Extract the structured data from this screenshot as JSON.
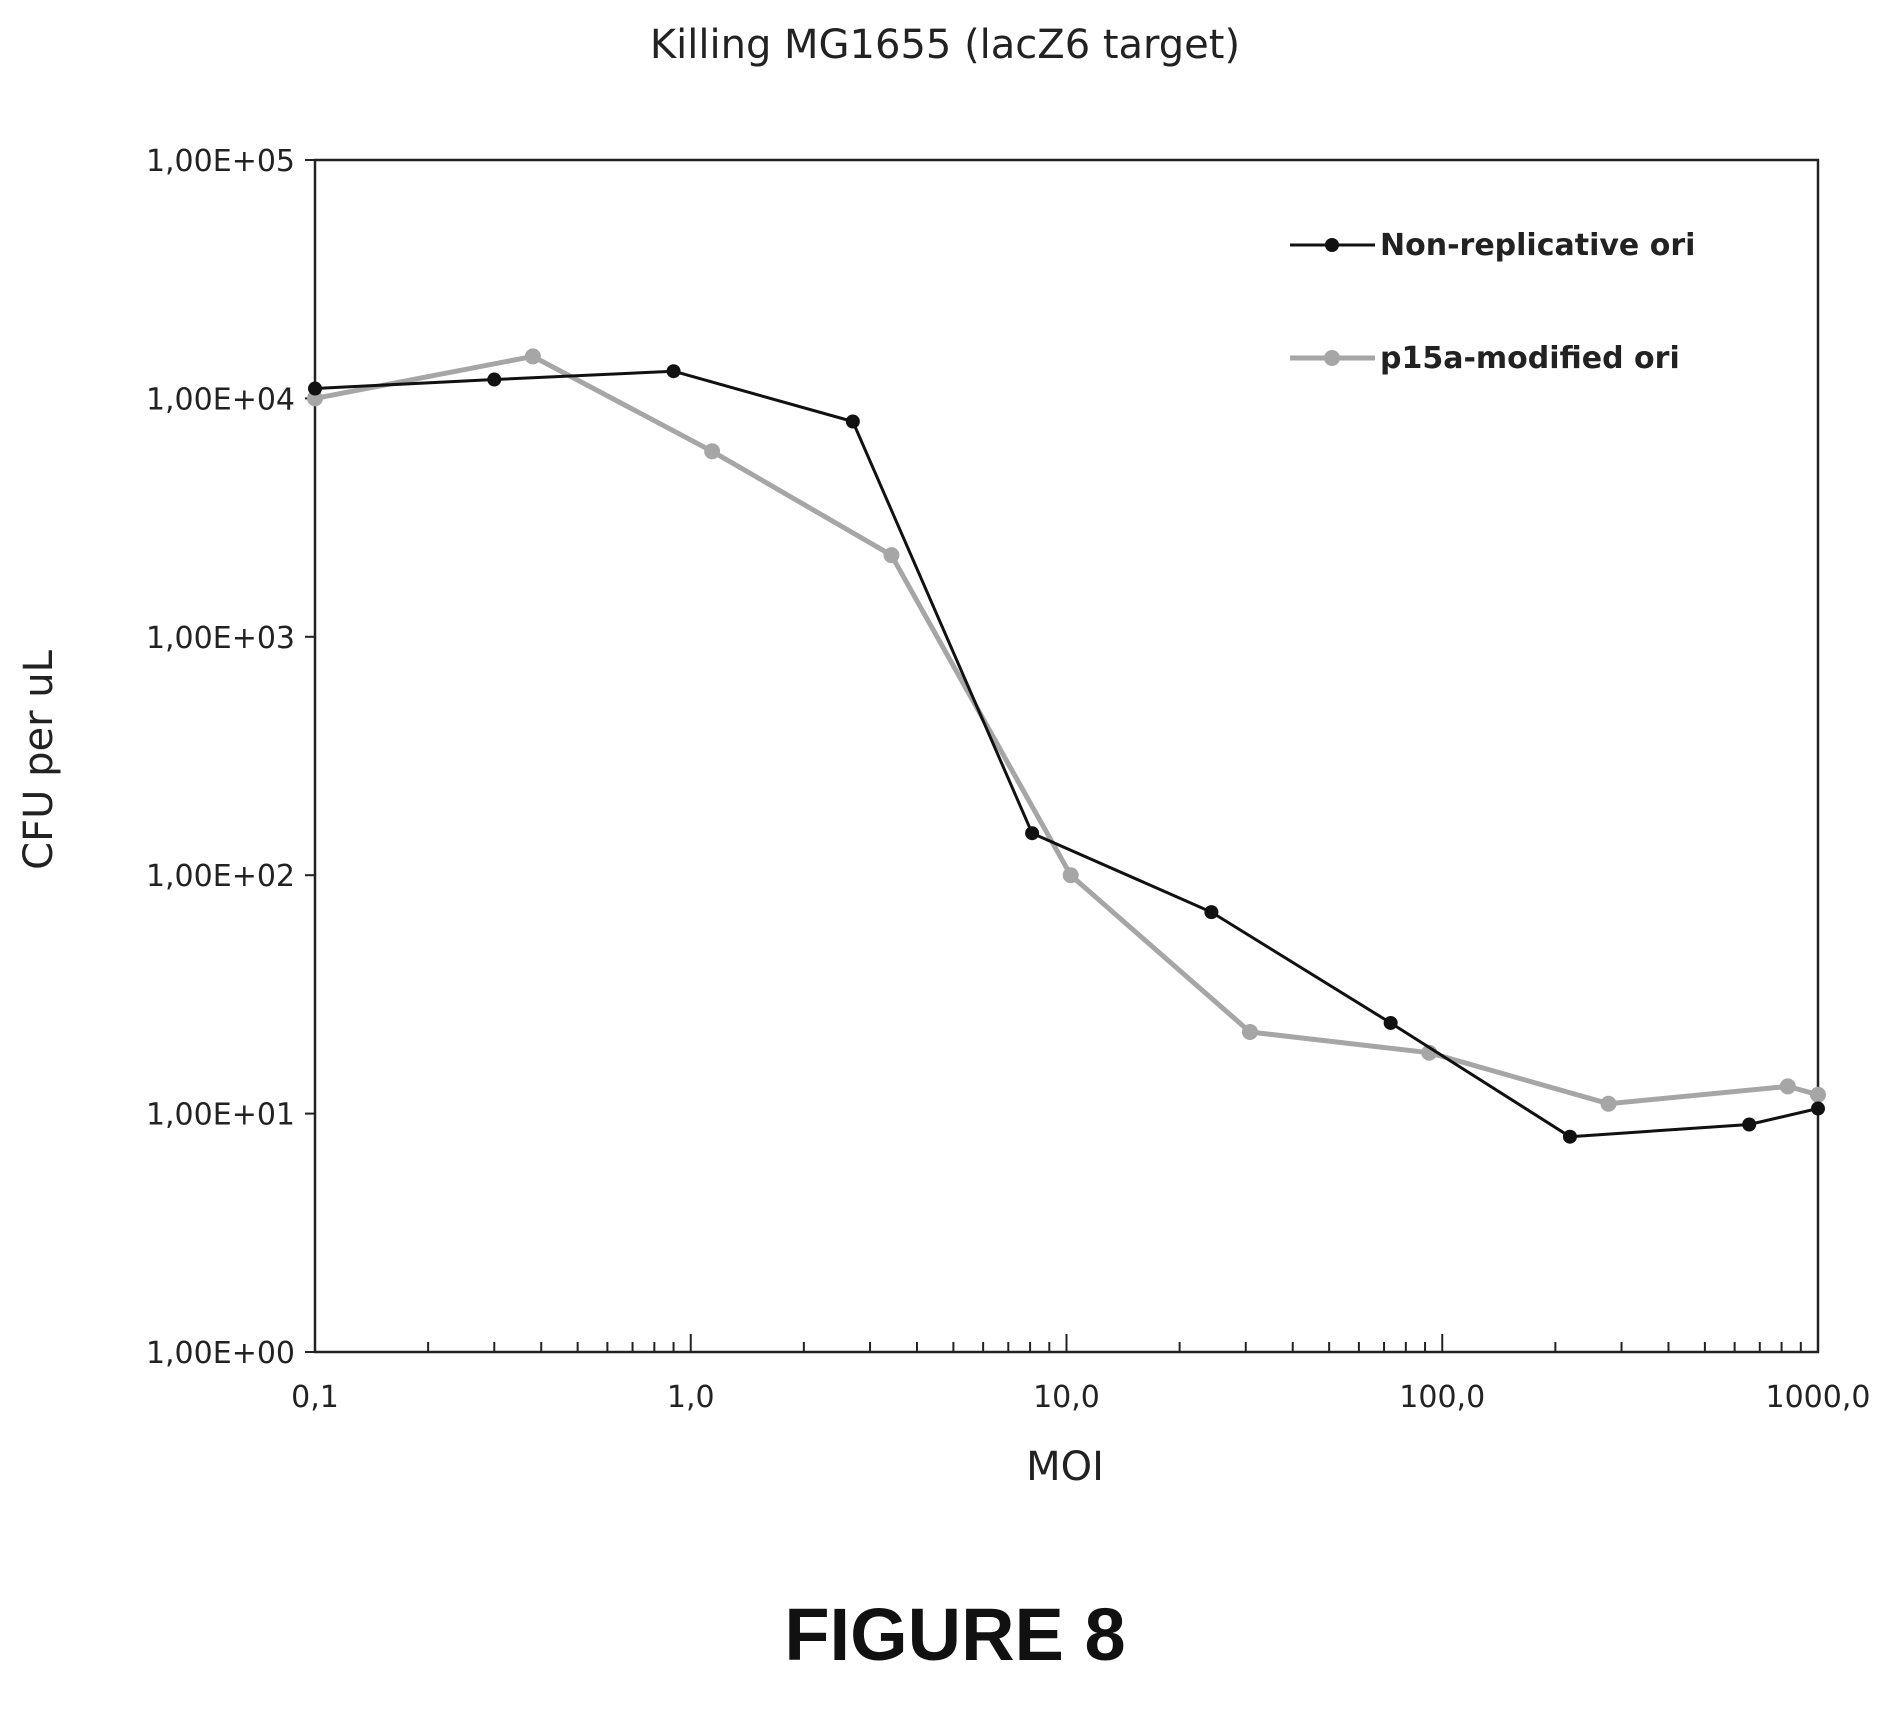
{
  "figure_caption": "FIGURE 8",
  "chart_data": {
    "type": "line",
    "title": "Killing MG1655 (lacZ6 target)",
    "xlabel": "MOI",
    "ylabel": "CFU per uL",
    "x_scale": "log",
    "y_scale": "log",
    "xlim": [
      0.1,
      1000
    ],
    "ylim": [
      1,
      100000
    ],
    "x_ticks": [
      {
        "value": 0.1,
        "label": "0,1"
      },
      {
        "value": 1,
        "label": "1,0"
      },
      {
        "value": 10,
        "label": "10,0"
      },
      {
        "value": 100,
        "label": "100,0"
      },
      {
        "value": 1000,
        "label": "1000,0"
      }
    ],
    "y_ticks": [
      {
        "value": 1,
        "label": "1,00E+00"
      },
      {
        "value": 10,
        "label": "1,00E+01"
      },
      {
        "value": 100,
        "label": "1,00E+02"
      },
      {
        "value": 1000,
        "label": "1,00E+03"
      },
      {
        "value": 10000,
        "label": "1,00E+04"
      },
      {
        "value": 100000,
        "label": "1,00E+05"
      }
    ],
    "grid": false,
    "legend_position": "top-right",
    "series": [
      {
        "name": "Non-replicative ori",
        "color": "#111111",
        "points": [
          {
            "x": 0.1,
            "y": 11000
          },
          {
            "x": 0.3,
            "y": 12000
          },
          {
            "x": 0.9,
            "y": 13000
          },
          {
            "x": 2.7,
            "y": 8000
          },
          {
            "x": 8.1,
            "y": 150
          },
          {
            "x": 24.3,
            "y": 70
          },
          {
            "x": 72.9,
            "y": 24
          },
          {
            "x": 218.7,
            "y": 8
          },
          {
            "x": 656.1,
            "y": 9
          },
          {
            "x": 1000,
            "y": 10.5
          }
        ]
      },
      {
        "name": "p15a-modified ori",
        "color": "#a6a6a6",
        "points": [
          {
            "x": 0.1,
            "y": 10000
          },
          {
            "x": 0.38,
            "y": 15000
          },
          {
            "x": 1.14,
            "y": 6000
          },
          {
            "x": 3.42,
            "y": 2200
          },
          {
            "x": 10.26,
            "y": 100
          },
          {
            "x": 30.78,
            "y": 22
          },
          {
            "x": 92.34,
            "y": 18
          },
          {
            "x": 277,
            "y": 11
          },
          {
            "x": 831,
            "y": 13
          },
          {
            "x": 1000,
            "y": 12
          }
        ]
      }
    ]
  }
}
